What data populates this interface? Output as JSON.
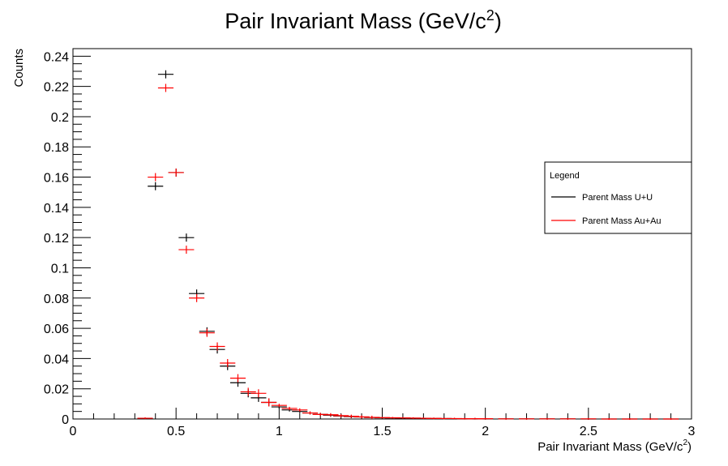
{
  "chart_data": {
    "type": "scatter",
    "title": "Pair Invariant Mass (GeV/c",
    "title_sup": "2",
    "title_close": ")",
    "xlabel": "Pair Invariant Mass (GeV/c",
    "xlabel_sup": "2",
    "xlabel_close": ")",
    "ylabel": "Counts",
    "xlim": [
      0,
      3
    ],
    "ylim": [
      0,
      0.245
    ],
    "x_ticks": [
      0,
      0.5,
      1,
      1.5,
      2,
      2.5,
      3
    ],
    "x_tick_labels": [
      "0",
      "0.5",
      "1",
      "1.5",
      "2",
      "2.5",
      "3"
    ],
    "y_ticks": [
      0,
      0.02,
      0.04,
      0.06,
      0.08,
      0.1,
      0.12,
      0.14,
      0.16,
      0.18,
      0.2,
      0.22,
      0.24
    ],
    "y_tick_labels": [
      "0",
      "0.02",
      "0.04",
      "0.06",
      "0.08",
      "0.1",
      "0.12",
      "0.14",
      "0.16",
      "0.18",
      "0.2",
      "0.22",
      "0.24"
    ],
    "grid": false,
    "legend": {
      "title": "Legend",
      "position": "right",
      "entries": [
        "Parent Mass U+U",
        "Parent Mass Au+Au"
      ]
    },
    "series": [
      {
        "name": "Parent Mass U+U",
        "color": "#000000",
        "x": [
          0.35,
          0.4,
          0.45,
          0.5,
          0.55,
          0.6,
          0.65,
          0.7,
          0.75,
          0.8,
          0.85,
          0.9,
          0.95,
          1.0,
          1.05,
          1.1,
          1.15,
          1.2,
          1.25,
          1.3,
          1.35,
          1.4,
          1.45,
          1.5,
          1.55,
          1.6,
          1.65,
          1.7,
          1.75,
          1.8,
          1.85,
          1.9,
          1.95,
          2.0,
          2.1,
          2.2,
          2.3,
          2.4,
          2.5,
          2.6,
          2.7,
          2.8,
          2.9
        ],
        "y": [
          0.0004,
          0.154,
          0.228,
          0.163,
          0.12,
          0.083,
          0.058,
          0.046,
          0.035,
          0.024,
          0.017,
          0.014,
          0.011,
          0.008,
          0.006,
          0.005,
          0.004,
          0.003,
          0.0025,
          0.002,
          0.0016,
          0.0013,
          0.001,
          0.0008,
          0.0007,
          0.0006,
          0.0005,
          0.0004,
          0.0003,
          0.0003,
          0.0002,
          0.0002,
          0.0002,
          0.0001,
          0.0001,
          0.0001,
          0.0001,
          0.0001,
          0.0,
          0.0,
          0.0,
          0.0,
          0.0
        ]
      },
      {
        "name": "Parent Mass Au+Au",
        "color": "#ff0000",
        "x": [
          0.35,
          0.4,
          0.45,
          0.5,
          0.55,
          0.6,
          0.65,
          0.7,
          0.75,
          0.8,
          0.85,
          0.9,
          0.95,
          1.0,
          1.05,
          1.1,
          1.15,
          1.2,
          1.25,
          1.3,
          1.35,
          1.4,
          1.45,
          1.5,
          1.55,
          1.6,
          1.65,
          1.7,
          1.75,
          1.8,
          1.85,
          1.9,
          1.95,
          2.0,
          2.1,
          2.2,
          2.3,
          2.4,
          2.5,
          2.6,
          2.7,
          2.8,
          2.9
        ],
        "y": [
          0.0005,
          0.16,
          0.219,
          0.163,
          0.112,
          0.08,
          0.057,
          0.048,
          0.037,
          0.027,
          0.018,
          0.017,
          0.011,
          0.009,
          0.007,
          0.006,
          0.004,
          0.003,
          0.0028,
          0.0022,
          0.0018,
          0.0014,
          0.0011,
          0.0009,
          0.0008,
          0.0007,
          0.0006,
          0.0005,
          0.0004,
          0.0003,
          0.0003,
          0.0002,
          0.0002,
          0.0002,
          0.0001,
          0.0001,
          0.0001,
          0.0001,
          0.0001,
          0.0,
          0.0,
          0.0,
          0.0
        ]
      }
    ]
  }
}
